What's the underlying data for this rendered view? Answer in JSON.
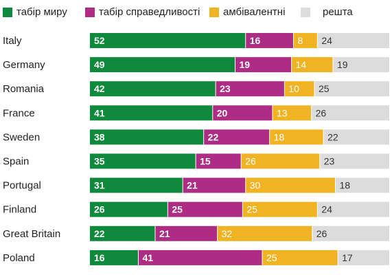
{
  "chart_data": {
    "type": "bar",
    "orientation": "horizontal",
    "stacked": true,
    "normalized": true,
    "categories": [
      "Italy",
      "Germany",
      "Romania",
      "France",
      "Sweden",
      "Spain",
      "Portugal",
      "Finland",
      "Great Britain",
      "Poland"
    ],
    "series": [
      {
        "name": "табір миру",
        "color": "#0f8a3c",
        "values": [
          52,
          49,
          42,
          41,
          38,
          35,
          31,
          26,
          22,
          16
        ]
      },
      {
        "name": "табір справедливості",
        "color": "#ad2d85",
        "values": [
          16,
          19,
          23,
          20,
          22,
          15,
          21,
          25,
          21,
          41
        ]
      },
      {
        "name": "амбівалентні",
        "color": "#f0b323",
        "values": [
          8,
          14,
          10,
          13,
          18,
          26,
          30,
          25,
          32,
          25
        ]
      },
      {
        "name": "решта",
        "color": "#dcdcdc",
        "values": [
          24,
          19,
          25,
          26,
          22,
          23,
          18,
          24,
          26,
          17
        ]
      }
    ],
    "legend_position": "top",
    "grid": false
  }
}
